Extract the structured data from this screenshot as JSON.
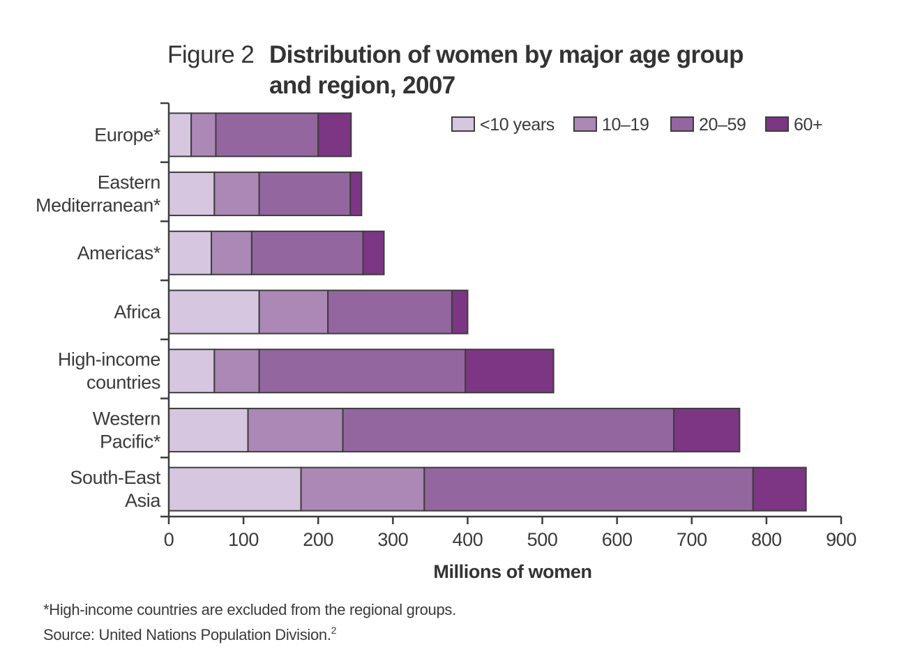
{
  "figure": {
    "label": "Figure 2",
    "title_lines": [
      "Distribution of women by major age group",
      "and region, 2007"
    ]
  },
  "chart_data": {
    "type": "bar",
    "orientation": "horizontal",
    "stacked": true,
    "title": "Distribution of women by major age group and region, 2007",
    "xlabel": "Millions of women",
    "ylabel": "",
    "xlim": [
      0,
      900
    ],
    "xticks": [
      0,
      100,
      200,
      300,
      400,
      500,
      600,
      700,
      800,
      900
    ],
    "grid": false,
    "legend_position": "top-right",
    "categories": [
      [
        "Europe*"
      ],
      [
        "Eastern",
        "Mediterranean*"
      ],
      [
        "Americas*"
      ],
      [
        "Africa"
      ],
      [
        "High-income",
        "countries"
      ],
      [
        "Western",
        "Pacific*"
      ],
      [
        "South-East",
        "Asia"
      ]
    ],
    "series": [
      {
        "name": "<10 years",
        "color": "#d6c6df",
        "values": [
          30,
          61,
          57,
          121,
          61,
          106,
          177
        ]
      },
      {
        "name": "10–19",
        "color": "#ab88b6",
        "values": [
          33,
          60,
          54,
          92,
          60,
          127,
          165
        ]
      },
      {
        "name": "20–59",
        "color": "#94669f",
        "values": [
          137,
          122,
          149,
          166,
          276,
          443,
          440
        ]
      },
      {
        "name": "60+",
        "color": "#7c3684",
        "values": [
          44,
          15,
          28,
          21,
          118,
          88,
          71
        ]
      }
    ]
  },
  "footnotes": {
    "note": "*High-income countries are excluded from the regional groups.",
    "source": "Source: United Nations Population Division.",
    "source_ref": "2"
  }
}
